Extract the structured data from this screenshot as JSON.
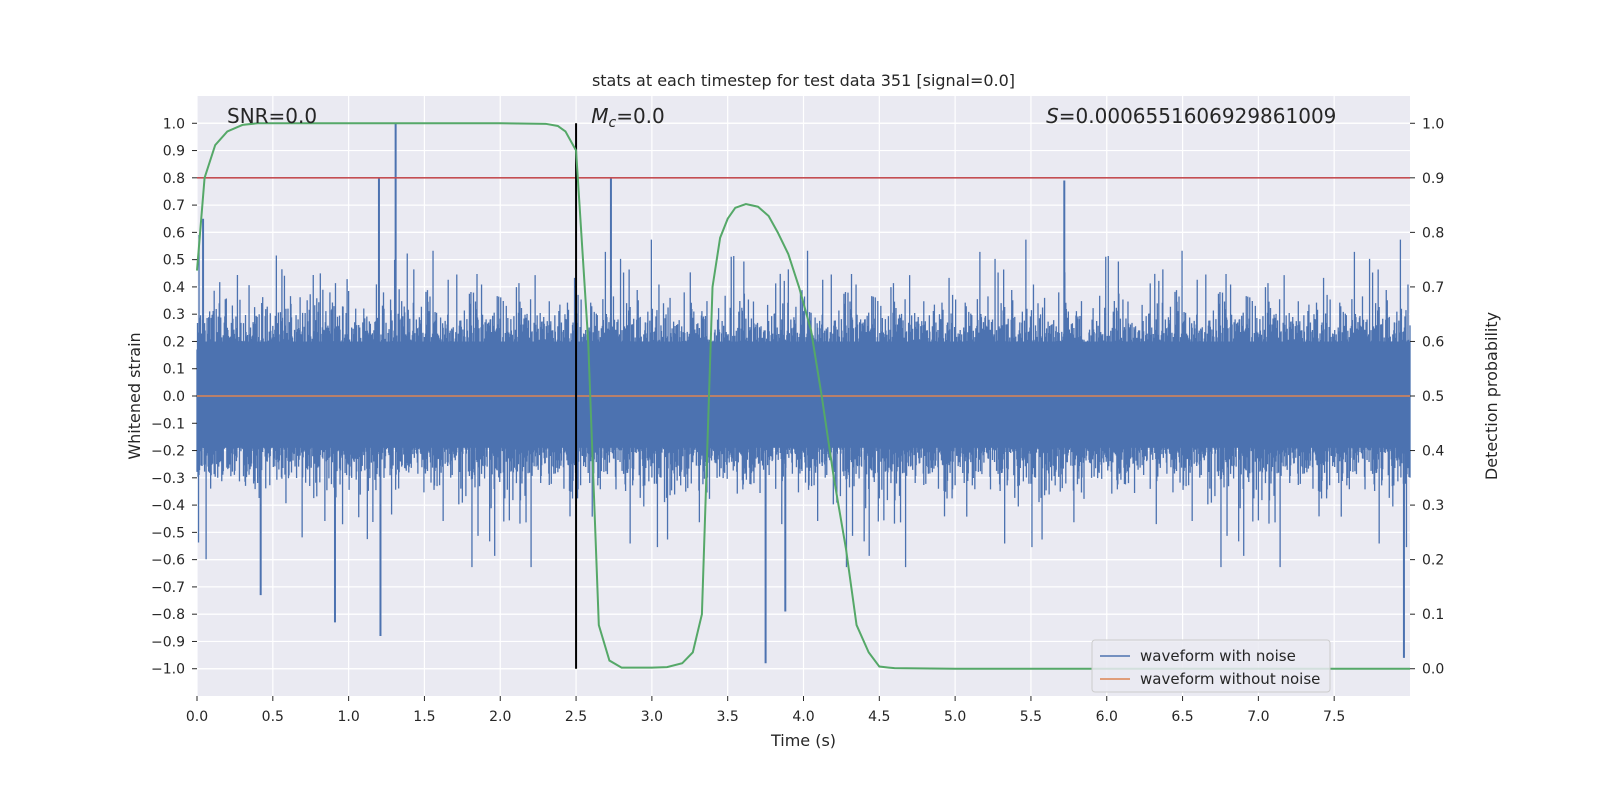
{
  "chart_data": {
    "type": "line",
    "title": "stats at each timestep for test data 351 [signal=0.0]",
    "xlabel": "Time (s)",
    "ylabel_left": "Whitened strain",
    "ylabel_right": "Detection probability",
    "xlim": [
      0.0,
      8.0
    ],
    "ylim_left": [
      -1.1,
      1.1
    ],
    "ylim_right": [
      -0.05,
      1.05
    ],
    "x_ticks": [
      0.0,
      0.5,
      1.0,
      1.5,
      2.0,
      2.5,
      3.0,
      3.5,
      4.0,
      4.5,
      5.0,
      5.5,
      6.0,
      6.5,
      7.0,
      7.5
    ],
    "x_tick_labels": [
      "0.0",
      "0.5",
      "1.0",
      "1.5",
      "2.0",
      "2.5",
      "3.0",
      "3.5",
      "4.0",
      "4.5",
      "5.0",
      "5.5",
      "6.0",
      "6.5",
      "7.0",
      "7.5"
    ],
    "y_left_ticks": [
      1.0,
      0.9,
      0.8,
      0.7,
      0.6,
      0.5,
      0.4,
      0.3,
      0.2,
      0.1,
      0.0,
      -0.1,
      -0.2,
      -0.3,
      -0.4,
      -0.5,
      -0.6,
      -0.7,
      -0.8,
      -0.9,
      -1.0
    ],
    "y_left_tick_labels": [
      "1.0",
      "0.9",
      "0.8",
      "0.7",
      "0.6",
      "0.5",
      "0.4",
      "0.3",
      "0.2",
      "0.1",
      "0.0",
      "−0.1",
      "−0.2",
      "−0.3",
      "−0.4",
      "−0.5",
      "−0.6",
      "−0.7",
      "−0.8",
      "−0.9",
      "−1.0"
    ],
    "y_right_ticks": [
      1.0,
      0.9,
      0.8,
      0.7,
      0.6,
      0.5,
      0.4,
      0.3,
      0.2,
      0.1,
      0.0
    ],
    "y_right_tick_labels": [
      "1.0",
      "0.9",
      "0.8",
      "0.7",
      "0.6",
      "0.5",
      "0.4",
      "0.3",
      "0.2",
      "0.1",
      "0.0"
    ],
    "annotations": {
      "snr": "SNR=0.0",
      "mc_symbol": "M",
      "mc_sub": "c",
      "mc_value": "=0.0",
      "s_symbol": "S",
      "s_value": "=0.0006551606929861009"
    },
    "threshold": {
      "axis": "right",
      "value": 0.9,
      "color": "#c44e52"
    },
    "vline": {
      "x": 2.5,
      "y_range_left": [
        -1.0,
        1.0
      ],
      "color": "#000000"
    },
    "series": [
      {
        "name": "waveform with noise",
        "axis": "left",
        "color": "#4c72b0",
        "kind": "noise",
        "typical_envelope": [
          -0.4,
          0.4
        ],
        "peaks": [
          {
            "x": 1.31,
            "y": 1.0
          },
          {
            "x": 2.73,
            "y": 0.8
          },
          {
            "x": 1.2,
            "y": 0.8
          },
          {
            "x": 5.72,
            "y": 0.79
          },
          {
            "x": 0.04,
            "y": 0.65
          },
          {
            "x": 3.75,
            "y": -0.98
          },
          {
            "x": 0.91,
            "y": -0.83
          },
          {
            "x": 1.21,
            "y": -0.88
          },
          {
            "x": 7.96,
            "y": -0.96
          },
          {
            "x": 0.42,
            "y": -0.73
          },
          {
            "x": 3.88,
            "y": -0.79
          }
        ]
      },
      {
        "name": "waveform without noise",
        "axis": "left",
        "color": "#dd8452",
        "x": [
          0.0,
          8.0
        ],
        "y": [
          0.0,
          0.0
        ]
      },
      {
        "name": "detection probability",
        "axis": "right",
        "color": "#55a868",
        "x": [
          0.0,
          0.05,
          0.12,
          0.2,
          0.3,
          0.4,
          0.6,
          1.0,
          1.5,
          2.0,
          2.3,
          2.38,
          2.43,
          2.5,
          2.58,
          2.65,
          2.72,
          2.8,
          3.0,
          3.1,
          3.2,
          3.27,
          3.33,
          3.4,
          3.45,
          3.5,
          3.55,
          3.62,
          3.7,
          3.77,
          3.83,
          3.9,
          3.97,
          4.05,
          4.12,
          4.2,
          4.28,
          4.35,
          4.43,
          4.5,
          4.6,
          5.0,
          6.0,
          7.0,
          8.0
        ],
        "y": [
          0.73,
          0.9,
          0.96,
          0.985,
          0.997,
          1.0,
          1.0,
          1.0,
          1.0,
          1.0,
          0.999,
          0.995,
          0.985,
          0.95,
          0.6,
          0.08,
          0.015,
          0.002,
          0.002,
          0.003,
          0.01,
          0.03,
          0.1,
          0.7,
          0.79,
          0.825,
          0.845,
          0.852,
          0.847,
          0.83,
          0.8,
          0.76,
          0.7,
          0.62,
          0.5,
          0.35,
          0.22,
          0.08,
          0.03,
          0.004,
          0.001,
          0.0,
          0.0,
          0.0,
          0.0
        ]
      }
    ],
    "legend": {
      "location": "lower-right",
      "entries": [
        {
          "label": "waveform with noise",
          "color": "#4c72b0"
        },
        {
          "label": "waveform without noise",
          "color": "#dd8452"
        }
      ]
    },
    "style": {
      "background": "#eaeaf2",
      "grid_color": "#ffffff",
      "grid": true
    }
  }
}
